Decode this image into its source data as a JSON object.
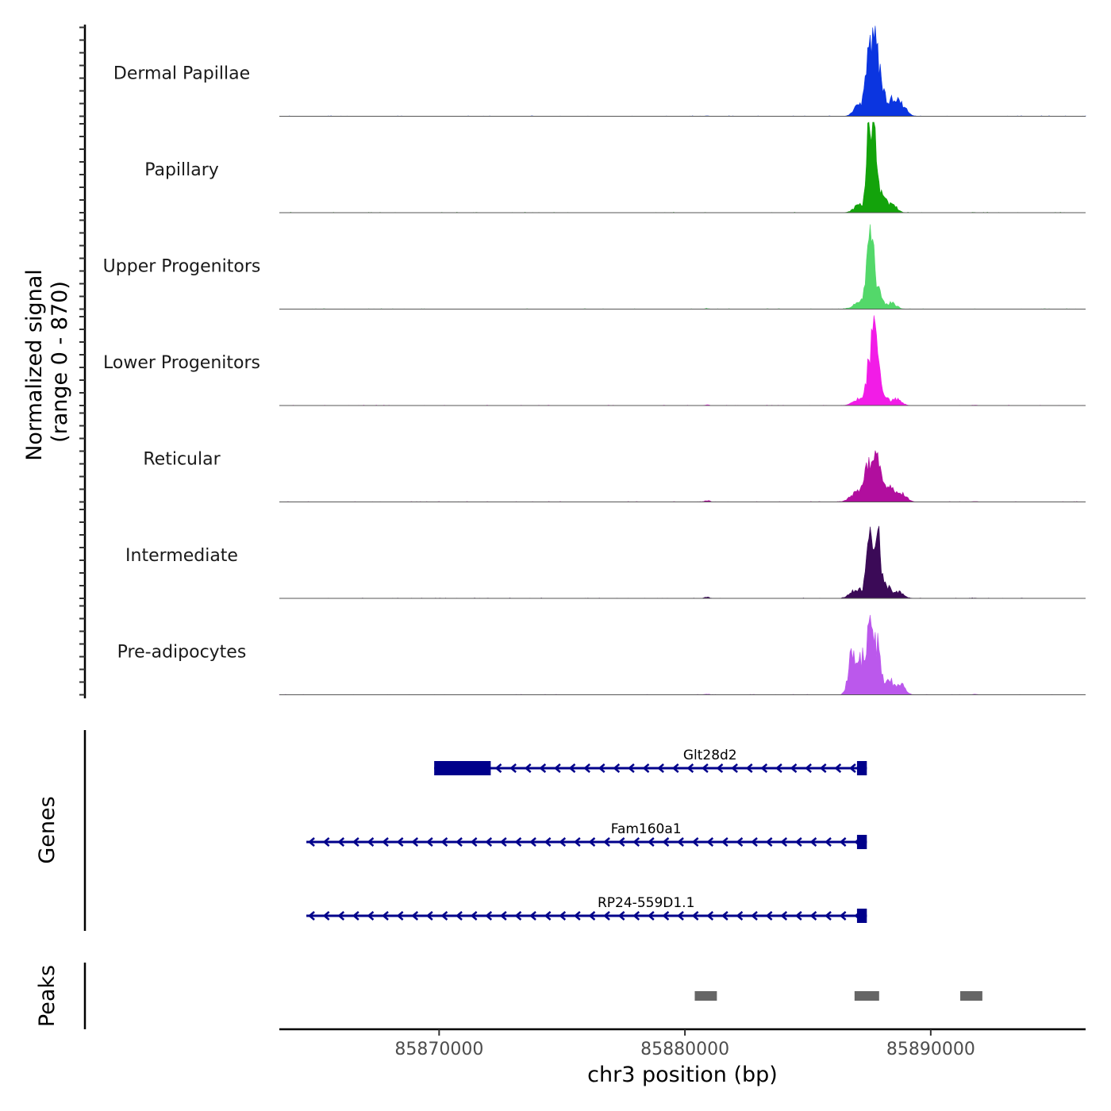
{
  "chart_data": {
    "type": "area",
    "title": "",
    "xlabel": "chr3 position (bp)",
    "ylabel": "Normalized signal\n(range 0 - 870)",
    "xlim": [
      85863500,
      85896300
    ],
    "ylim": [
      0,
      870
    ],
    "x_ticks": [
      {
        "value": 85870000,
        "label": "85870000"
      },
      {
        "value": 85880000,
        "label": "85880000"
      },
      {
        "value": 85890000,
        "label": "85890000"
      }
    ],
    "series": [
      {
        "name": "Dermal Papillae",
        "color": "#0b35e0",
        "peaks": [
          [
            85880900,
            4,
            70
          ],
          [
            85887100,
            110,
            200
          ],
          [
            85887500,
            610,
            130
          ],
          [
            85887750,
            660,
            110
          ],
          [
            85888000,
            300,
            130
          ],
          [
            85888400,
            140,
            200
          ],
          [
            85888800,
            110,
            200
          ]
        ]
      },
      {
        "name": "Papillary",
        "color": "#13a30b",
        "peaks": [
          [
            85880800,
            2,
            70
          ],
          [
            85887100,
            70,
            220
          ],
          [
            85887500,
            740,
            110
          ],
          [
            85887700,
            660,
            110
          ],
          [
            85888000,
            170,
            150
          ],
          [
            85888400,
            80,
            200
          ],
          [
            85891800,
            3,
            70
          ]
        ]
      },
      {
        "name": "Upper Progenitors",
        "color": "#53d86a",
        "peaks": [
          [
            85880900,
            6,
            70
          ],
          [
            85887100,
            60,
            250
          ],
          [
            85887550,
            740,
            150
          ],
          [
            85887900,
            120,
            150
          ],
          [
            85888400,
            60,
            200
          ],
          [
            85891800,
            2,
            70
          ]
        ]
      },
      {
        "name": "Lower Progenitors",
        "color": "#f21ce7",
        "peaks": [
          [
            85880900,
            6,
            90
          ],
          [
            85887100,
            60,
            250
          ],
          [
            85887550,
            480,
            140
          ],
          [
            85887800,
            580,
            120
          ],
          [
            85888100,
            90,
            150
          ],
          [
            85888600,
            60,
            200
          ],
          [
            85891800,
            3,
            90
          ]
        ]
      },
      {
        "name": "Reticular",
        "color": "#b10e9e",
        "peaks": [
          [
            85880900,
            15,
            100
          ],
          [
            85887000,
            90,
            250
          ],
          [
            85887500,
            400,
            160
          ],
          [
            85887850,
            380,
            140
          ],
          [
            85888300,
            130,
            200
          ],
          [
            85888800,
            80,
            200
          ],
          [
            85891800,
            4,
            100
          ]
        ]
      },
      {
        "name": "Intermediate",
        "color": "#3b0a57",
        "peaks": [
          [
            85880900,
            12,
            100
          ],
          [
            85887000,
            90,
            250
          ],
          [
            85887500,
            560,
            120
          ],
          [
            85887850,
            600,
            110
          ],
          [
            85888200,
            120,
            150
          ],
          [
            85888700,
            60,
            200
          ],
          [
            85891800,
            3,
            100
          ]
        ]
      },
      {
        "name": "Pre-adipocytes",
        "color": "#bb58ec",
        "peaks": [
          [
            85880900,
            6,
            100
          ],
          [
            85886800,
            390,
            150
          ],
          [
            85887200,
            320,
            140
          ],
          [
            85887550,
            660,
            130
          ],
          [
            85887850,
            420,
            130
          ],
          [
            85888300,
            150,
            170
          ],
          [
            85888800,
            100,
            170
          ],
          [
            85891800,
            5,
            100
          ]
        ]
      }
    ],
    "genes": {
      "title": "Genes",
      "color": "#00008b",
      "items": [
        {
          "name": "Glt28d2",
          "start": 85869800,
          "end": 85887400,
          "strand": "-",
          "exons": [
            [
              85869800,
              85872100
            ],
            [
              85887000,
              85887400
            ]
          ]
        },
        {
          "name": "Fam160a1",
          "start": 85864600,
          "end": 85887400,
          "strand": "-",
          "exons": [
            [
              85887000,
              85887400
            ]
          ]
        },
        {
          "name": "RP24-559D1.1",
          "start": 85864600,
          "end": 85887400,
          "strand": "-",
          "exons": [
            [
              85887000,
              85887400
            ]
          ]
        }
      ]
    },
    "peaks_track": {
      "title": "Peaks",
      "color": "#666666",
      "regions": [
        [
          85880400,
          85881300
        ],
        [
          85886900,
          85887900
        ],
        [
          85891200,
          85892100
        ]
      ]
    }
  }
}
